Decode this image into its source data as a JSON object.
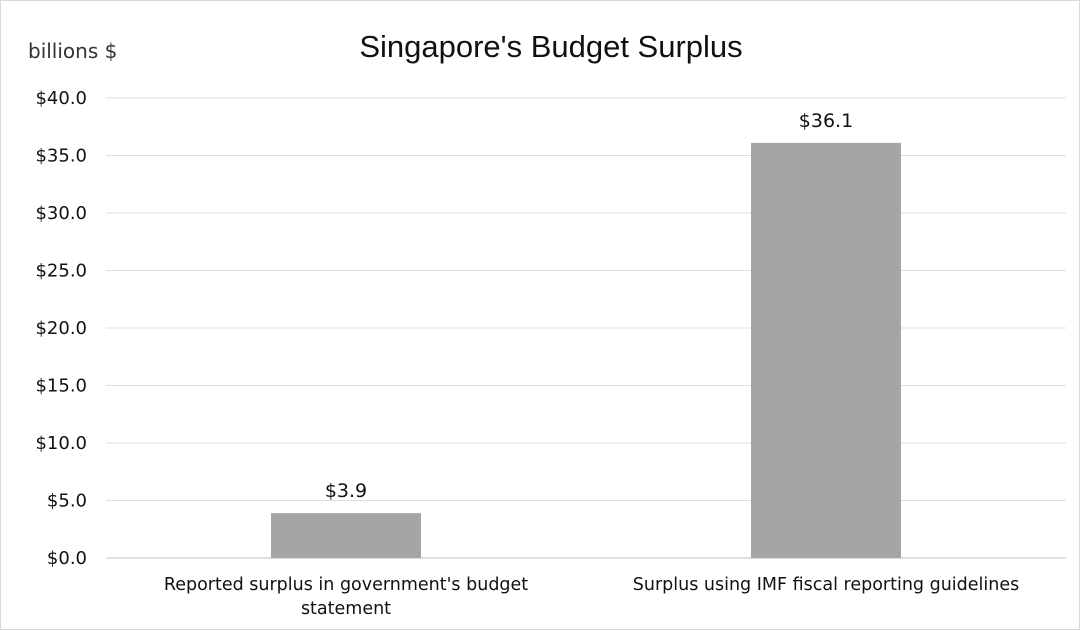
{
  "chart_data": {
    "type": "bar",
    "title": "Singapore's Budget Surplus",
    "unit_label": "billions $",
    "categories": [
      [
        "Reported surplus in government's budget",
        "statement"
      ],
      [
        "Surplus using IMF fiscal reporting guidelines"
      ]
    ],
    "values": [
      3.9,
      36.1
    ],
    "data_labels": [
      "$3.9",
      "$36.1"
    ],
    "y_ticks": [
      "$0.0",
      "$5.0",
      "$10.0",
      "$15.0",
      "$20.0",
      "$25.0",
      "$30.0",
      "$35.0",
      "$40.0"
    ],
    "ylim": [
      0,
      40
    ],
    "grid": true,
    "legend": false,
    "bar_color": "#a5a5a5"
  }
}
